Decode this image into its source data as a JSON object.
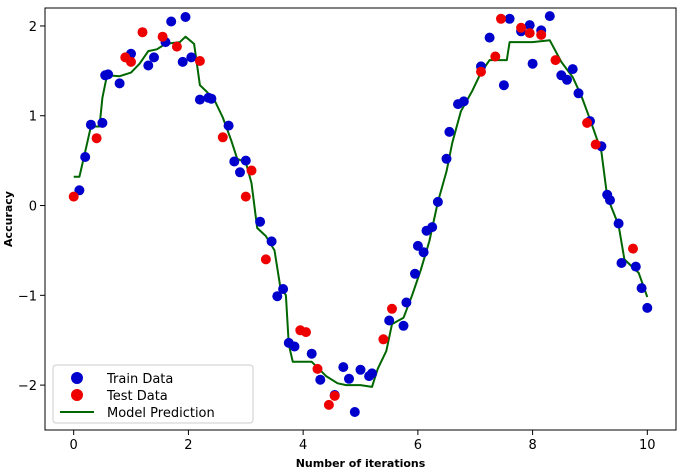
{
  "chart_data": {
    "type": "scatter",
    "title": "",
    "xlabel": "Number of iterations",
    "ylabel": "Accuracy",
    "xlim": [
      -0.5,
      10.5
    ],
    "ylim": [
      -2.5,
      2.2
    ],
    "xticks": [
      0,
      2,
      4,
      6,
      8,
      10
    ],
    "yticks": [
      -2,
      -1,
      0,
      1,
      2
    ],
    "tick_labels_x": [
      "0",
      "2",
      "4",
      "6",
      "8",
      "10"
    ],
    "tick_labels_y": [
      "−2",
      "−1",
      "0",
      "1",
      "2"
    ],
    "grid": false,
    "legend_position": "bottom-left",
    "colors": {
      "train": "#0000cc",
      "test": "#ee0000",
      "model": "#006600"
    },
    "series": [
      {
        "name": "Train Data",
        "kind": "scatter",
        "points": [
          [
            0.1,
            0.17
          ],
          [
            0.2,
            0.54
          ],
          [
            0.3,
            0.9
          ],
          [
            0.5,
            0.92
          ],
          [
            0.55,
            1.45
          ],
          [
            0.6,
            1.46
          ],
          [
            0.8,
            1.36
          ],
          [
            1.0,
            1.69
          ],
          [
            1.3,
            1.56
          ],
          [
            1.4,
            1.65
          ],
          [
            1.6,
            1.82
          ],
          [
            1.7,
            2.05
          ],
          [
            1.95,
            2.1
          ],
          [
            1.9,
            1.6
          ],
          [
            2.05,
            1.65
          ],
          [
            2.2,
            1.18
          ],
          [
            2.35,
            1.2
          ],
          [
            2.4,
            1.19
          ],
          [
            2.7,
            0.89
          ],
          [
            2.8,
            0.49
          ],
          [
            2.9,
            0.37
          ],
          [
            3.0,
            0.5
          ],
          [
            3.25,
            -0.18
          ],
          [
            3.45,
            -0.4
          ],
          [
            3.55,
            -1.01
          ],
          [
            3.65,
            -0.93
          ],
          [
            3.75,
            -1.53
          ],
          [
            3.85,
            -1.57
          ],
          [
            4.15,
            -1.65
          ],
          [
            4.3,
            -1.94
          ],
          [
            4.55,
            -2.11
          ],
          [
            4.7,
            -1.8
          ],
          [
            4.8,
            -1.93
          ],
          [
            4.9,
            -2.3
          ],
          [
            5.0,
            -1.83
          ],
          [
            5.15,
            -1.9
          ],
          [
            5.2,
            -1.87
          ],
          [
            5.5,
            -1.28
          ],
          [
            5.75,
            -1.34
          ],
          [
            5.8,
            -1.08
          ],
          [
            5.95,
            -0.76
          ],
          [
            6.0,
            -0.45
          ],
          [
            6.1,
            -0.52
          ],
          [
            6.15,
            -0.28
          ],
          [
            6.25,
            -0.24
          ],
          [
            6.35,
            0.04
          ],
          [
            6.5,
            0.52
          ],
          [
            6.55,
            0.82
          ],
          [
            6.7,
            1.13
          ],
          [
            6.8,
            1.16
          ],
          [
            7.1,
            1.55
          ],
          [
            7.25,
            1.87
          ],
          [
            7.5,
            1.34
          ],
          [
            7.6,
            2.08
          ],
          [
            7.8,
            1.94
          ],
          [
            7.95,
            2.01
          ],
          [
            8.0,
            1.58
          ],
          [
            8.15,
            1.95
          ],
          [
            8.3,
            2.11
          ],
          [
            8.5,
            1.45
          ],
          [
            8.6,
            1.4
          ],
          [
            8.7,
            1.52
          ],
          [
            8.8,
            1.25
          ],
          [
            9.0,
            0.94
          ],
          [
            9.2,
            0.66
          ],
          [
            9.3,
            0.12
          ],
          [
            9.35,
            0.06
          ],
          [
            9.5,
            -0.2
          ],
          [
            9.55,
            -0.64
          ],
          [
            9.8,
            -0.68
          ],
          [
            9.9,
            -0.92
          ],
          [
            10.0,
            -1.14
          ]
        ]
      },
      {
        "name": "Test Data",
        "kind": "scatter",
        "points": [
          [
            0.0,
            0.1
          ],
          [
            0.4,
            0.75
          ],
          [
            0.9,
            1.65
          ],
          [
            1.0,
            1.6
          ],
          [
            1.2,
            1.93
          ],
          [
            1.55,
            1.88
          ],
          [
            1.8,
            1.77
          ],
          [
            2.2,
            1.61
          ],
          [
            2.6,
            0.76
          ],
          [
            3.0,
            0.1
          ],
          [
            3.1,
            0.39
          ],
          [
            3.35,
            -0.6
          ],
          [
            3.95,
            -1.39
          ],
          [
            4.05,
            -1.41
          ],
          [
            4.25,
            -1.82
          ],
          [
            4.45,
            -2.22
          ],
          [
            4.55,
            -2.12
          ],
          [
            5.4,
            -1.49
          ],
          [
            5.55,
            -1.15
          ],
          [
            7.1,
            1.49
          ],
          [
            7.35,
            1.66
          ],
          [
            7.45,
            2.08
          ],
          [
            7.8,
            1.98
          ],
          [
            7.95,
            1.92
          ],
          [
            8.15,
            1.9
          ],
          [
            8.4,
            1.62
          ],
          [
            8.95,
            0.92
          ],
          [
            9.1,
            0.68
          ],
          [
            9.75,
            -0.48
          ]
        ]
      },
      {
        "name": "Model Prediction",
        "kind": "line",
        "points": [
          [
            0.0,
            0.32
          ],
          [
            0.1,
            0.32
          ],
          [
            0.2,
            0.6
          ],
          [
            0.3,
            0.88
          ],
          [
            0.45,
            0.88
          ],
          [
            0.5,
            1.2
          ],
          [
            0.58,
            1.45
          ],
          [
            0.8,
            1.44
          ],
          [
            1.0,
            1.48
          ],
          [
            1.15,
            1.58
          ],
          [
            1.3,
            1.72
          ],
          [
            1.45,
            1.74
          ],
          [
            1.6,
            1.8
          ],
          [
            1.85,
            1.82
          ],
          [
            1.95,
            1.88
          ],
          [
            2.1,
            1.8
          ],
          [
            2.2,
            1.34
          ],
          [
            2.3,
            1.28
          ],
          [
            2.45,
            1.18
          ],
          [
            2.6,
            0.98
          ],
          [
            2.75,
            0.72
          ],
          [
            2.85,
            0.52
          ],
          [
            3.0,
            0.48
          ],
          [
            3.1,
            0.25
          ],
          [
            3.2,
            -0.25
          ],
          [
            3.35,
            -0.34
          ],
          [
            3.5,
            -0.5
          ],
          [
            3.6,
            -0.9
          ],
          [
            3.7,
            -1.0
          ],
          [
            3.75,
            -1.55
          ],
          [
            3.82,
            -1.74
          ],
          [
            4.15,
            -1.74
          ],
          [
            4.4,
            -1.9
          ],
          [
            4.6,
            -1.98
          ],
          [
            4.75,
            -2.0
          ],
          [
            5.0,
            -2.0
          ],
          [
            5.2,
            -2.02
          ],
          [
            5.3,
            -1.82
          ],
          [
            5.45,
            -1.62
          ],
          [
            5.55,
            -1.32
          ],
          [
            5.75,
            -1.25
          ],
          [
            5.9,
            -1.0
          ],
          [
            6.05,
            -0.72
          ],
          [
            6.2,
            -0.4
          ],
          [
            6.35,
            0.04
          ],
          [
            6.5,
            0.38
          ],
          [
            6.6,
            0.7
          ],
          [
            6.75,
            1.05
          ],
          [
            6.95,
            1.28
          ],
          [
            7.1,
            1.48
          ],
          [
            7.25,
            1.62
          ],
          [
            7.55,
            1.62
          ],
          [
            7.6,
            1.82
          ],
          [
            8.0,
            1.82
          ],
          [
            8.3,
            1.84
          ],
          [
            8.5,
            1.6
          ],
          [
            8.7,
            1.43
          ],
          [
            8.85,
            1.22
          ],
          [
            9.0,
            0.96
          ],
          [
            9.2,
            0.6
          ],
          [
            9.3,
            0.1
          ],
          [
            9.5,
            -0.22
          ],
          [
            9.6,
            -0.6
          ],
          [
            9.85,
            -0.75
          ],
          [
            10.0,
            -1.02
          ]
        ]
      }
    ]
  }
}
